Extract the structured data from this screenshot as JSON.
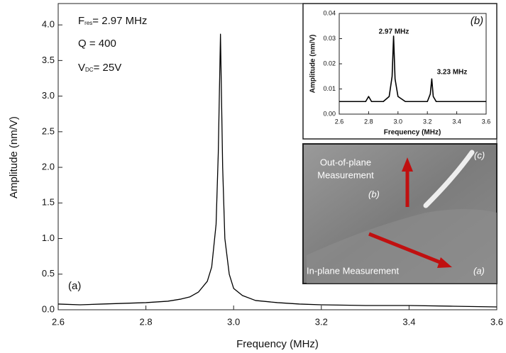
{
  "chart_data": [
    {
      "type": "line",
      "color": "#000000",
      "x_label": "Frequency (MHz)",
      "y_label": "Amplitude (nm/V)",
      "x": [
        2.6,
        2.65,
        2.7,
        2.75,
        2.8,
        2.85,
        2.88,
        2.9,
        2.92,
        2.94,
        2.95,
        2.96,
        2.965,
        2.97,
        2.975,
        2.98,
        2.99,
        3.0,
        3.02,
        3.05,
        3.1,
        3.15,
        3.2,
        3.3,
        3.4,
        3.5,
        3.6
      ],
      "values": [
        0.08,
        0.07,
        0.08,
        0.09,
        0.1,
        0.12,
        0.15,
        0.18,
        0.25,
        0.4,
        0.6,
        1.2,
        2.2,
        3.87,
        2.0,
        1.0,
        0.5,
        0.3,
        0.2,
        0.13,
        0.1,
        0.08,
        0.07,
        0.06,
        0.06,
        0.05,
        0.04
      ],
      "xlim": [
        2.6,
        3.6
      ],
      "ylim": [
        0,
        4.3
      ],
      "xticks": [
        2.6,
        2.8,
        {
          "value": 3,
          "label": "3.0"
        },
        3.2,
        3.4,
        3.6
      ],
      "yticks": [
        {
          "value": 0,
          "label": "0.0"
        },
        0.5,
        {
          "value": 1,
          "label": "1.0"
        },
        1.5,
        {
          "value": 2,
          "label": "2.0"
        },
        2.5,
        {
          "value": 3,
          "label": "3.0"
        },
        3.5,
        {
          "value": 4,
          "label": "4.0"
        }
      ],
      "annotations": {
        "f_main": "F",
        "f_sub": "res",
        "f_rest": "= 2.97 MHz",
        "q": "Q = 400",
        "v_main": "V",
        "v_sub": "DC",
        "v_rest": "= 25V",
        "panel": "(a)"
      }
    },
    {
      "type": "line",
      "color": "#000000",
      "x_label": "Frequency (MHz)",
      "y_label": "Amplitude (nm/V)",
      "x": [
        2.6,
        2.7,
        2.78,
        2.8,
        2.82,
        2.9,
        2.94,
        2.96,
        2.97,
        2.98,
        3.0,
        3.05,
        3.1,
        3.2,
        3.22,
        3.23,
        3.24,
        3.26,
        3.35,
        3.45,
        3.6
      ],
      "values": [
        0.005,
        0.005,
        0.005,
        0.007,
        0.005,
        0.005,
        0.007,
        0.015,
        0.031,
        0.014,
        0.007,
        0.005,
        0.005,
        0.005,
        0.008,
        0.014,
        0.007,
        0.005,
        0.005,
        0.005,
        0.005
      ],
      "xlim": [
        2.6,
        3.6
      ],
      "ylim": [
        0,
        0.04
      ],
      "xticks": [
        2.6,
        2.8,
        {
          "value": 3,
          "label": "3.0"
        },
        3.2,
        3.4,
        3.6
      ],
      "yticks": [
        {
          "value": 0,
          "label": "0.00"
        },
        0.01,
        {
          "value": 0.02,
          "label": "0.02"
        },
        0.03,
        {
          "value": 0.04,
          "label": "0.04"
        }
      ],
      "annotations": {
        "peak1": "2.97 MHz",
        "peak2": "3.23 MHz",
        "panel": "(b)"
      }
    }
  ],
  "image_panel": {
    "out_of_plane": "Out-of-plane",
    "measurement": "Measurement",
    "label_b": "(b)",
    "label_c": "(c)",
    "in_plane": "In-plane Measurement",
    "label_a": "(a)"
  }
}
